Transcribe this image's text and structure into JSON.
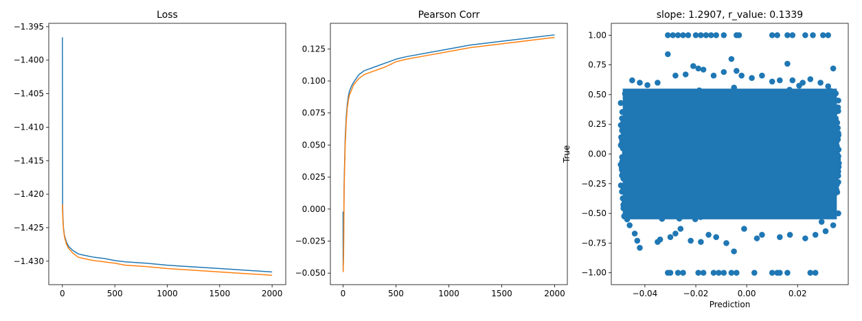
{
  "chart_data": [
    {
      "type": "line",
      "title": "Loss",
      "xlabel": "",
      "ylabel": "",
      "xlim": [
        -130,
        2130
      ],
      "ylim": [
        -1.4335,
        -1.3945
      ],
      "x_ticks": [
        0,
        500,
        1000,
        1500,
        2000
      ],
      "x_tick_labels": [
        "0",
        "500",
        "1000",
        "1500",
        "2000"
      ],
      "y_ticks": [
        -1.395,
        -1.4,
        -1.405,
        -1.41,
        -1.415,
        -1.42,
        -1.425,
        -1.43
      ],
      "y_tick_labels": [
        "−1.395",
        "−1.400",
        "−1.405",
        "−1.410",
        "−1.415",
        "−1.420",
        "−1.425",
        "−1.430"
      ],
      "grid": false,
      "series": [
        {
          "color": "#1f77b4",
          "x": [
            0,
            2,
            5,
            10,
            20,
            40,
            60,
            100,
            150,
            200,
            300,
            400,
            500,
            600,
            800,
            1000,
            1200,
            1500,
            1800,
            2000
          ],
          "y": [
            -1.3966,
            -1.4213,
            -1.4235,
            -1.425,
            -1.4262,
            -1.4272,
            -1.4278,
            -1.4284,
            -1.4289,
            -1.4291,
            -1.4294,
            -1.4296,
            -1.4299,
            -1.4301,
            -1.4303,
            -1.4306,
            -1.4308,
            -1.4311,
            -1.4314,
            -1.4316
          ]
        },
        {
          "color": "#ff7f0e",
          "x": [
            0,
            2,
            5,
            10,
            20,
            40,
            60,
            100,
            150,
            200,
            300,
            400,
            500,
            600,
            800,
            1000,
            1200,
            1500,
            1800,
            2000
          ],
          "y": [
            -1.4215,
            -1.4228,
            -1.424,
            -1.4252,
            -1.4264,
            -1.4275,
            -1.4281,
            -1.4288,
            -1.4294,
            -1.4296,
            -1.4299,
            -1.4301,
            -1.4303,
            -1.4306,
            -1.4308,
            -1.4311,
            -1.4313,
            -1.4316,
            -1.4319,
            -1.4321
          ]
        }
      ]
    },
    {
      "type": "line",
      "title": "Pearson Corr",
      "xlabel": "",
      "ylabel": "",
      "xlim": [
        -120,
        2120
      ],
      "ylim": [
        -0.059,
        0.145
      ],
      "x_ticks": [
        0,
        500,
        1000,
        1500,
        2000
      ],
      "x_tick_labels": [
        "0",
        "500",
        "1000",
        "1500",
        "2000"
      ],
      "y_ticks": [
        -0.05,
        -0.025,
        0.0,
        0.025,
        0.05,
        0.075,
        0.1,
        0.125
      ],
      "y_tick_labels": [
        "−0.050",
        "−0.025",
        "0.000",
        "0.025",
        "0.050",
        "0.075",
        "0.100",
        "0.125"
      ],
      "grid": false,
      "series": [
        {
          "color": "#1f77b4",
          "x": [
            0,
            1,
            5,
            10,
            20,
            30,
            40,
            50,
            60,
            80,
            100,
            150,
            200,
            300,
            400,
            500,
            600,
            800,
            1000,
            1200,
            1500,
            1800,
            2000
          ],
          "y": [
            -0.002,
            -0.048,
            -0.03,
            0.02,
            0.055,
            0.072,
            0.082,
            0.088,
            0.092,
            0.096,
            0.099,
            0.105,
            0.108,
            0.111,
            0.114,
            0.117,
            0.119,
            0.122,
            0.125,
            0.128,
            0.131,
            0.134,
            0.136
          ]
        },
        {
          "color": "#ff7f0e",
          "x": [
            0,
            1,
            5,
            10,
            20,
            30,
            40,
            50,
            60,
            80,
            100,
            150,
            200,
            300,
            400,
            500,
            600,
            800,
            1000,
            1200,
            1500,
            1800,
            2000
          ],
          "y": [
            -0.049,
            -0.049,
            -0.035,
            0.015,
            0.05,
            0.068,
            0.079,
            0.085,
            0.089,
            0.093,
            0.097,
            0.102,
            0.105,
            0.108,
            0.111,
            0.115,
            0.117,
            0.12,
            0.123,
            0.126,
            0.129,
            0.132,
            0.134
          ]
        }
      ]
    },
    {
      "type": "scatter",
      "title": "slope: 1.2907, r_value: 0.1339",
      "xlabel": "Prediction",
      "ylabel": "True",
      "xlim": [
        -0.0532,
        0.0399
      ],
      "ylim": [
        -1.1,
        1.1
      ],
      "x_ticks": [
        -0.04,
        -0.02,
        0.0,
        0.02
      ],
      "x_tick_labels": [
        "−0.04",
        "−0.02",
        "0.00",
        "0.02"
      ],
      "y_ticks": [
        -1.0,
        -0.75,
        -0.5,
        -0.25,
        0.0,
        0.25,
        0.5,
        0.75,
        1.0
      ],
      "y_tick_labels": [
        "−1.00",
        "−0.75",
        "−0.50",
        "−0.25",
        "0.00",
        "0.25",
        "0.50",
        "0.75",
        "1.00"
      ],
      "grid": false,
      "color": "#1f77b4",
      "dense_region": {
        "x": [
          -0.0495,
          0.0362
        ],
        "y": [
          -0.55,
          0.55
        ]
      },
      "points": [
        [
          -0.031,
          1.0
        ],
        [
          -0.029,
          1.0
        ],
        [
          -0.027,
          1.0
        ],
        [
          -0.025,
          1.0
        ],
        [
          -0.023,
          1.0
        ],
        [
          -0.02,
          1.0
        ],
        [
          -0.018,
          1.0
        ],
        [
          -0.016,
          1.0
        ],
        [
          -0.014,
          1.0
        ],
        [
          -0.012,
          1.0
        ],
        [
          -0.009,
          1.0
        ],
        [
          -0.004,
          1.0
        ],
        [
          -0.003,
          1.0
        ],
        [
          0.01,
          1.0
        ],
        [
          0.012,
          1.0
        ],
        [
          0.016,
          1.0
        ],
        [
          0.018,
          1.0
        ],
        [
          0.023,
          1.0
        ],
        [
          0.026,
          1.0
        ],
        [
          0.03,
          1.0
        ],
        [
          0.032,
          1.0
        ],
        [
          -0.031,
          -1.0
        ],
        [
          -0.03,
          -1.0
        ],
        [
          -0.027,
          -1.0
        ],
        [
          -0.025,
          -1.0
        ],
        [
          -0.019,
          -1.0
        ],
        [
          -0.017,
          -1.0
        ],
        [
          -0.013,
          -1.0
        ],
        [
          -0.011,
          -1.0
        ],
        [
          -0.009,
          -1.0
        ],
        [
          -0.006,
          -1.0
        ],
        [
          -0.004,
          -1.0
        ],
        [
          0.003,
          -1.0
        ],
        [
          0.01,
          -1.0
        ],
        [
          0.012,
          -1.0
        ],
        [
          0.013,
          -1.0
        ],
        [
          0.016,
          -1.0
        ],
        [
          0.025,
          -1.0
        ],
        [
          0.027,
          -1.0
        ],
        [
          -0.031,
          0.84
        ],
        [
          -0.006,
          0.8
        ],
        [
          0.016,
          0.76
        ],
        [
          -0.045,
          0.62
        ],
        [
          -0.042,
          0.6
        ],
        [
          -0.039,
          0.58
        ],
        [
          -0.035,
          0.6
        ],
        [
          -0.028,
          0.66
        ],
        [
          -0.024,
          0.67
        ],
        [
          -0.021,
          0.74
        ],
        [
          -0.019,
          0.72
        ],
        [
          -0.017,
          0.71
        ],
        [
          -0.013,
          0.66
        ],
        [
          -0.009,
          0.69
        ],
        [
          -0.004,
          0.7
        ],
        [
          -0.002,
          0.66
        ],
        [
          0.002,
          0.64
        ],
        [
          0.006,
          0.66
        ],
        [
          0.01,
          0.61
        ],
        [
          0.013,
          0.62
        ],
        [
          0.018,
          0.62
        ],
        [
          0.022,
          0.6
        ],
        [
          0.025,
          0.63
        ],
        [
          0.029,
          0.6
        ],
        [
          0.032,
          0.57
        ],
        [
          0.034,
          0.72
        ],
        [
          0.033,
          0.53
        ],
        [
          0.035,
          0.51
        ],
        [
          -0.048,
          0.43
        ],
        [
          -0.049,
          0.3
        ],
        [
          -0.048,
          -0.4
        ],
        [
          -0.047,
          -0.55
        ],
        [
          -0.046,
          -0.6
        ],
        [
          -0.044,
          -0.67
        ],
        [
          -0.043,
          -0.73
        ],
        [
          -0.042,
          -0.79
        ],
        [
          -0.035,
          -0.74
        ],
        [
          -0.034,
          -0.72
        ],
        [
          -0.03,
          -0.7
        ],
        [
          -0.028,
          -0.67
        ],
        [
          -0.026,
          -0.63
        ],
        [
          -0.022,
          -0.73
        ],
        [
          -0.018,
          -0.74
        ],
        [
          -0.015,
          -0.68
        ],
        [
          -0.012,
          -0.7
        ],
        [
          -0.008,
          -0.75
        ],
        [
          -0.005,
          -0.82
        ],
        [
          -0.001,
          -0.63
        ],
        [
          0.004,
          -0.71
        ],
        [
          0.006,
          -0.68
        ],
        [
          0.013,
          -0.7
        ],
        [
          0.017,
          -0.68
        ],
        [
          0.023,
          -0.71
        ],
        [
          0.027,
          -0.68
        ],
        [
          0.031,
          -0.65
        ],
        [
          0.034,
          -0.6
        ],
        [
          0.036,
          -0.5
        ],
        [
          0.036,
          0.45
        ]
      ]
    }
  ]
}
